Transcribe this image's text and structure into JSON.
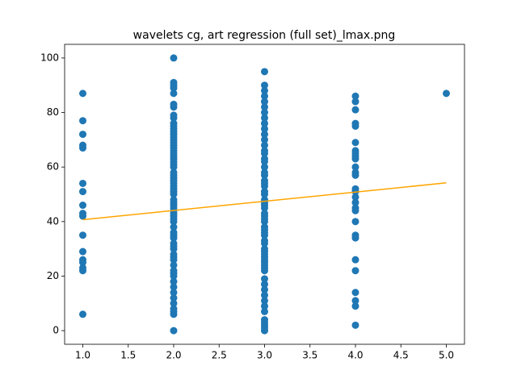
{
  "chart_data": {
    "type": "scatter",
    "title": "wavelets cg, art regression (full set)_lmax.png",
    "x": [
      1,
      1,
      1,
      1,
      1,
      1,
      1,
      1,
      1,
      1,
      1,
      1,
      1,
      1,
      1,
      1,
      1,
      2,
      2,
      2,
      2,
      2,
      2,
      2,
      2,
      2,
      2,
      2,
      2,
      2,
      2,
      2,
      2,
      2,
      2,
      2,
      2,
      2,
      2,
      2,
      2,
      2,
      2,
      2,
      2,
      2,
      2,
      2,
      2,
      2,
      2,
      2,
      2,
      2,
      2,
      2,
      2,
      2,
      2,
      2,
      2,
      2,
      2,
      2,
      2,
      2,
      2,
      2,
      2,
      2,
      2,
      2,
      2,
      2,
      2,
      2,
      2,
      2,
      2,
      2,
      2,
      2,
      2,
      2,
      3,
      3,
      3,
      3,
      3,
      3,
      3,
      3,
      3,
      3,
      3,
      3,
      3,
      3,
      3,
      3,
      3,
      3,
      3,
      3,
      3,
      3,
      3,
      3,
      3,
      3,
      3,
      3,
      3,
      3,
      3,
      3,
      3,
      3,
      3,
      3,
      3,
      3,
      3,
      3,
      3,
      3,
      3,
      3,
      3,
      3,
      3,
      3,
      3,
      3,
      3,
      3,
      3,
      3,
      3,
      3,
      3,
      3,
      3,
      3,
      4,
      4,
      4,
      4,
      4,
      4,
      4,
      4,
      4,
      4,
      4,
      4,
      4,
      4,
      4,
      4,
      4,
      4,
      4,
      4,
      4,
      4,
      4,
      4,
      4,
      4,
      4,
      4,
      5
    ],
    "y": [
      87,
      77,
      72,
      68,
      67,
      54,
      51,
      46,
      43,
      42,
      35,
      29,
      26,
      25,
      23,
      22,
      6,
      0,
      6,
      7,
      8,
      10,
      12,
      14,
      16,
      18,
      20,
      21,
      22,
      24,
      26,
      27,
      28,
      30,
      31,
      32,
      34,
      35,
      36,
      38,
      40,
      41,
      42,
      43,
      44,
      45,
      46,
      47,
      48,
      50,
      51,
      52,
      53,
      54,
      55,
      56,
      57,
      58,
      60,
      61,
      62,
      63,
      64,
      65,
      66,
      67,
      68,
      69,
      70,
      71,
      72,
      73,
      74,
      75,
      76,
      78,
      79,
      82,
      83,
      87,
      89,
      90,
      91,
      100,
      0,
      1,
      2,
      3,
      4,
      7,
      9,
      11,
      13,
      15,
      17,
      19,
      22,
      23,
      24,
      25,
      26,
      27,
      28,
      29,
      30,
      32,
      33,
      35,
      36,
      37,
      38,
      40,
      41,
      42,
      43,
      45,
      46,
      47,
      48,
      50,
      51,
      53,
      54,
      55,
      57,
      58,
      60,
      62,
      63,
      65,
      66,
      68,
      70,
      72,
      74,
      76,
      78,
      80,
      82,
      84,
      86,
      88,
      90,
      95,
      86,
      84,
      81,
      76,
      75,
      69,
      66,
      65,
      64,
      63,
      60,
      58,
      57,
      52,
      51,
      49,
      47,
      45,
      44,
      40,
      35,
      34,
      26,
      22,
      14,
      11,
      9,
      2,
      87
    ],
    "color": "#1f77b4",
    "fit": {
      "x": [
        1,
        5
      ],
      "y": [
        40.7,
        54.2
      ],
      "color": "orange"
    },
    "xlim": [
      0.8,
      5.2
    ],
    "xticks": [
      {
        "value": 1,
        "label": "1.0"
      },
      1.5,
      {
        "value": 2,
        "label": "2.0"
      },
      2.5,
      {
        "value": 3,
        "label": "3.0"
      },
      3.5,
      {
        "value": 4,
        "label": "4.0"
      },
      4.5,
      {
        "value": 5,
        "label": "5.0"
      }
    ],
    "ylim": [
      -5,
      105
    ],
    "yticks": [
      0,
      20,
      40,
      60,
      80,
      100
    ]
  }
}
